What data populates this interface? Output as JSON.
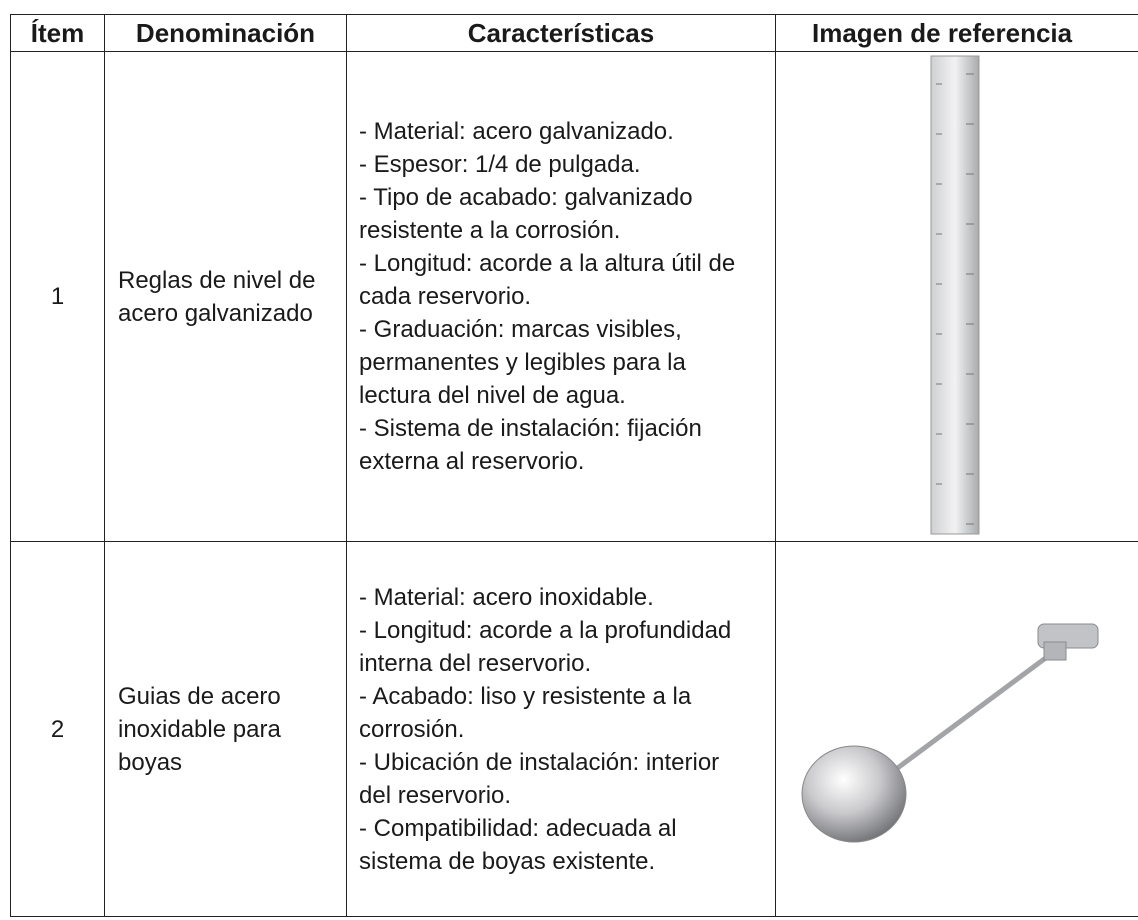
{
  "table": {
    "headers": [
      "Ítem",
      "Denominación",
      "Características",
      "Imagen de referencia"
    ],
    "rows": [
      {
        "item": "1",
        "name": "Reglas de nivel de acero galvanizado",
        "features": [
          "- Material: acero galvanizado.",
          "- Espesor: 1/4 de pulgada.",
          "- Tipo de acabado: galvanizado resistente a la corrosión.",
          "- Longitud: acorde a la altura útil de cada reservorio.",
          "- Graduación: marcas visibles, permanentes y legibles para la lectura del nivel de agua.",
          "- Sistema de instalación: fijación externa al reservorio."
        ]
      },
      {
        "item": "2",
        "name": "Guias de acero inoxidable para boyas",
        "features": [
          "- Material: acero inoxidable.",
          "- Longitud: acorde a la profundidad interna del reservorio.",
          "- Acabado: liso y resistente a la corrosión.",
          "- Ubicación de instalación: interior del reservorio.",
          "- Compatibilidad: adecuada al sistema de boyas existente."
        ]
      }
    ]
  }
}
